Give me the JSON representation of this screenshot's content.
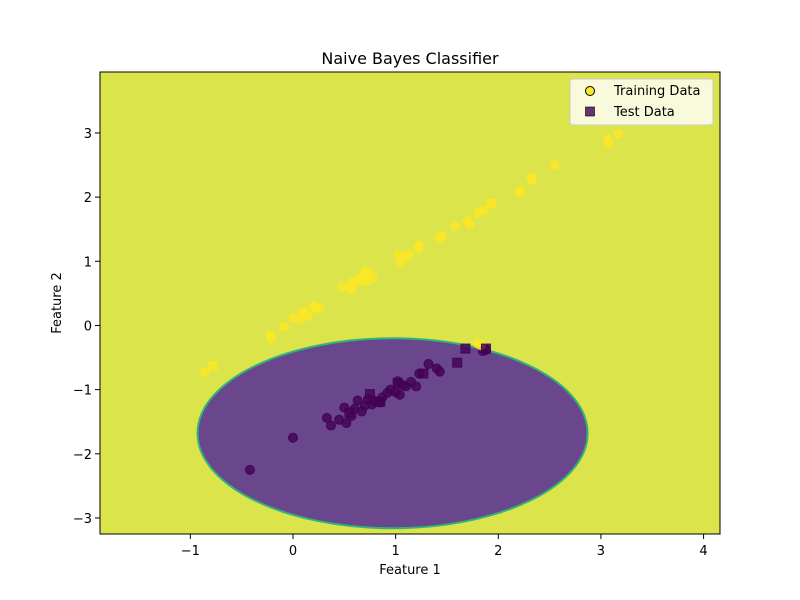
{
  "chart_data": {
    "type": "scatter",
    "title": "Naive Bayes Classifier",
    "xlabel": "Feature 1",
    "ylabel": "Feature 2",
    "xlim": [
      -1.88,
      4.16
    ],
    "ylim": [
      -3.25,
      3.95
    ],
    "xticks": [
      -1,
      0,
      1,
      2,
      3,
      4
    ],
    "yticks": [
      -3,
      -2,
      -1,
      0,
      1,
      2,
      3
    ],
    "xtick_labels": [
      "−1",
      "0",
      "1",
      "2",
      "3",
      "4"
    ],
    "ytick_labels": [
      "−3",
      "−2",
      "−1",
      "0",
      "1",
      "2",
      "3"
    ],
    "grid": false,
    "legend_position": "top-right",
    "colors": {
      "class_0_region": "#6a478d",
      "class_1_region": "#dbe44a",
      "class_0_point": "#440154",
      "class_1_point": "#fde725",
      "boundary": "#2fb47c"
    },
    "decision_regions": {
      "class_0_region": {
        "shape": "ellipse",
        "center": [
          0.97,
          -1.68
        ],
        "radii": [
          1.9,
          1.48
        ]
      },
      "class_1_region": "rest"
    },
    "series": [
      {
        "name": "Training Data",
        "marker": "circle",
        "class_0": [
          [
            -0.42,
            -2.25
          ],
          [
            0.0,
            -1.75
          ],
          [
            0.33,
            -1.44
          ],
          [
            0.37,
            -1.56
          ],
          [
            0.45,
            -1.47
          ],
          [
            0.5,
            -1.28
          ],
          [
            0.52,
            -1.52
          ],
          [
            0.57,
            -1.41
          ],
          [
            0.6,
            -1.3
          ],
          [
            0.63,
            -1.17
          ],
          [
            0.67,
            -1.34
          ],
          [
            0.7,
            -1.25
          ],
          [
            0.73,
            -1.15
          ],
          [
            0.77,
            -1.23
          ],
          [
            0.8,
            -1.18
          ],
          [
            0.85,
            -1.2
          ],
          [
            0.87,
            -1.12
          ],
          [
            0.92,
            -1.05
          ],
          [
            0.95,
            -1.0
          ],
          [
            1.0,
            -1.04
          ],
          [
            1.02,
            -0.87
          ],
          [
            1.04,
            -1.08
          ],
          [
            1.07,
            -0.93
          ],
          [
            1.1,
            -0.95
          ],
          [
            1.15,
            -0.88
          ],
          [
            1.2,
            -0.95
          ],
          [
            1.23,
            -0.75
          ],
          [
            1.32,
            -0.6
          ],
          [
            1.4,
            -0.67
          ],
          [
            1.43,
            -0.72
          ],
          [
            1.85,
            -0.4
          ],
          [
            1.88,
            -0.38
          ]
        ],
        "class_1": [
          [
            -0.86,
            -0.72
          ],
          [
            -0.22,
            -0.15
          ],
          [
            -0.21,
            -0.2
          ],
          [
            -0.09,
            -0.02
          ],
          [
            0.0,
            0.12
          ],
          [
            0.07,
            0.1
          ],
          [
            0.09,
            0.2
          ],
          [
            0.11,
            0.22
          ],
          [
            0.15,
            0.14
          ],
          [
            0.2,
            0.3
          ],
          [
            0.22,
            0.28
          ],
          [
            0.48,
            0.6
          ],
          [
            0.65,
            0.74
          ],
          [
            0.7,
            0.83
          ],
          [
            0.72,
            0.7
          ],
          [
            0.78,
            0.75
          ],
          [
            1.03,
            1.1
          ],
          [
            1.05,
            0.99
          ],
          [
            1.1,
            1.08
          ],
          [
            1.13,
            1.11
          ],
          [
            1.22,
            1.2
          ],
          [
            1.23,
            1.25
          ],
          [
            1.43,
            1.37
          ],
          [
            1.45,
            1.4
          ],
          [
            1.58,
            1.55
          ],
          [
            1.7,
            1.63
          ],
          [
            1.72,
            1.58
          ],
          [
            1.8,
            1.75
          ],
          [
            1.85,
            1.79
          ],
          [
            2.2,
            2.07
          ],
          [
            2.22,
            2.1
          ],
          [
            2.32,
            2.3
          ],
          [
            2.33,
            2.27
          ],
          [
            2.55,
            2.5
          ],
          [
            3.07,
            2.9
          ],
          [
            3.08,
            2.83
          ],
          [
            3.17,
            2.98
          ],
          [
            1.8,
            -0.28
          ],
          [
            1.83,
            -0.31
          ]
        ]
      },
      {
        "name": "Test Data",
        "marker": "square",
        "class_0": [
          [
            0.55,
            -1.36
          ],
          [
            0.75,
            -1.07
          ],
          [
            0.85,
            -1.19
          ],
          [
            1.02,
            -0.9
          ],
          [
            1.27,
            -0.75
          ],
          [
            1.6,
            -0.58
          ],
          [
            1.68,
            -0.36
          ],
          [
            1.88,
            -0.36
          ]
        ],
        "class_1": [
          [
            -0.78,
            -0.63
          ],
          [
            0.25,
            0.27
          ],
          [
            0.57,
            0.57
          ],
          [
            0.58,
            0.67
          ],
          [
            0.65,
            0.7
          ],
          [
            0.73,
            0.82
          ],
          [
            1.93,
            1.9
          ]
        ]
      }
    ]
  }
}
